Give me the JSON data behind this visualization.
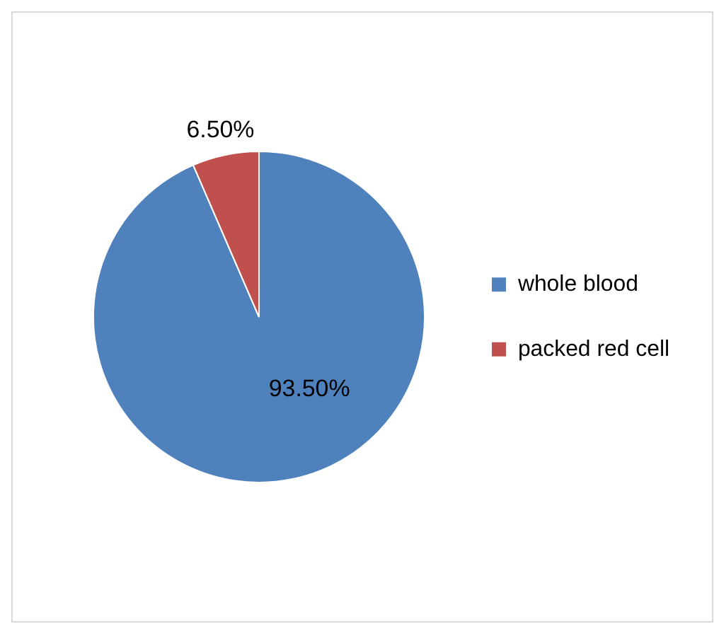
{
  "chart_data": {
    "type": "pie",
    "categories": [
      "whole blood",
      "packed red cell"
    ],
    "values": [
      93.5,
      6.5
    ],
    "colors": [
      "#4f81bd",
      "#c0504d"
    ],
    "value_labels": [
      "93.50%",
      "6.50%"
    ],
    "legend": "right"
  }
}
